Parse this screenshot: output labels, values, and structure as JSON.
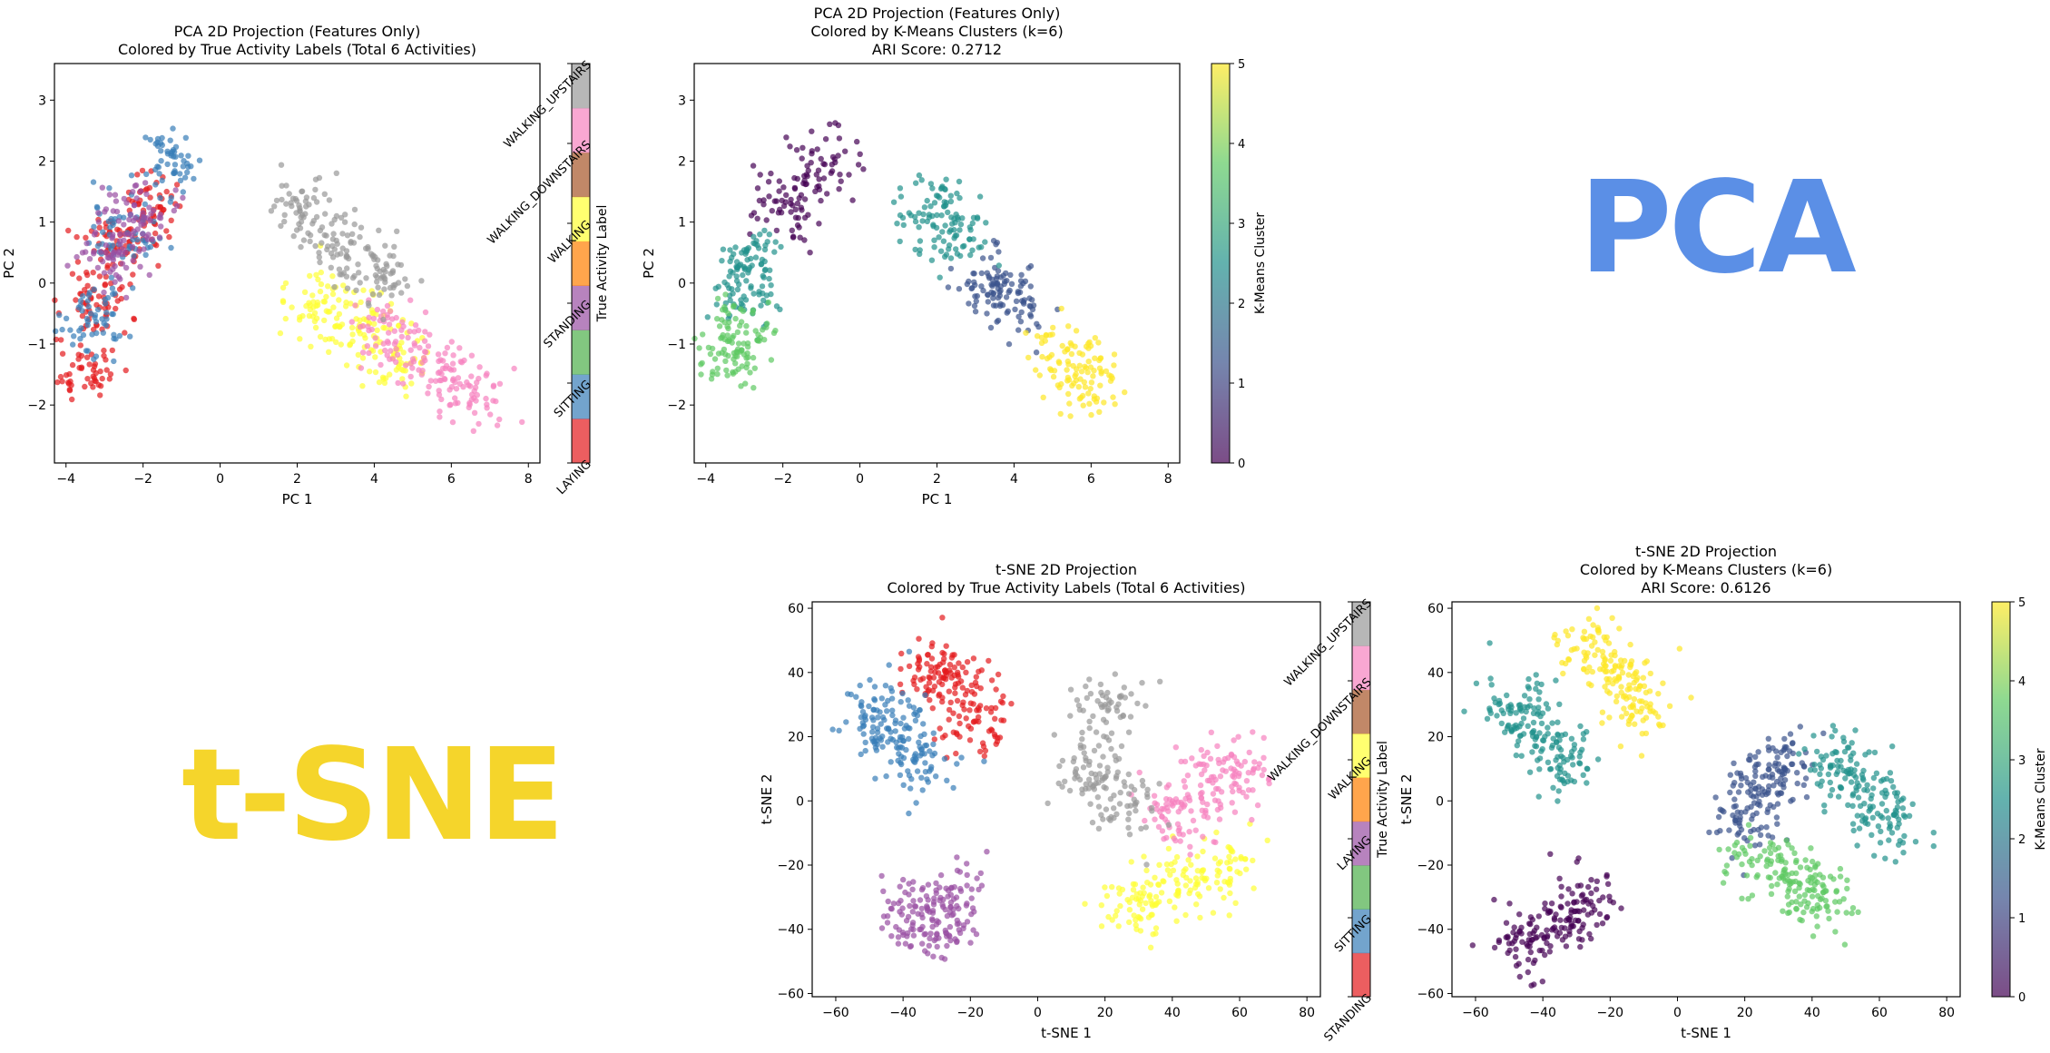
{
  "figure": {
    "big_labels": {
      "pca": "PCA",
      "tsne": "t-SNE"
    },
    "big_label_colors": {
      "pca": "#5b8fe6",
      "tsne": "#f5d52b"
    }
  },
  "activity_palette": {
    "LAYING": "#e41a1c",
    "SITTING": "#377eb8",
    "STANDING": "#984ea3",
    "WALKING": "#ffff33",
    "WALKING_DOWNSTAIRS": "#f781bf",
    "WALKING_UPSTAIRS": "#999999"
  },
  "tab10_colorbar_segments": [
    "#e41a1c",
    "#377eb8",
    "#4daf4a",
    "#984ea3",
    "#ff7f00",
    "#ffff33",
    "#a65628",
    "#f781bf",
    "#999999"
  ],
  "viridis_stops": [
    "#440154",
    "#3b528b",
    "#21918c",
    "#5ec962",
    "#fde725"
  ],
  "chart_data": [
    {
      "id": "pca-true",
      "type": "scatter",
      "title": "PCA 2D Projection (Features Only)",
      "subtitle": "Colored by True Activity Labels (Total 6 Activities)",
      "xlabel": "PC 1",
      "ylabel": "PC 2",
      "xlim": [
        -4.3,
        8.3
      ],
      "ylim": [
        -2.95,
        3.6
      ],
      "xticks": [
        -4,
        -2,
        0,
        2,
        4,
        6,
        8
      ],
      "yticks": [
        -2,
        -1,
        0,
        1,
        2,
        3
      ],
      "tick_labels_x": [
        "−4",
        "−2",
        "0",
        "2",
        "4",
        "6",
        "8"
      ],
      "tick_labels_y": [
        "−2",
        "−1",
        "0",
        "1",
        "2",
        "3"
      ],
      "colorbar": {
        "label": "True Activity Label",
        "kind": "categorical",
        "labels": [
          "LAYING",
          "SITTING",
          "STANDING",
          "WALKING",
          "WALKING_DOWNSTAIRS",
          "WALKING_UPSTAIRS"
        ]
      },
      "series": [
        {
          "name": "LAYING",
          "centroids": [
            [
              -3.5,
              -1.4
            ],
            [
              -3.2,
              -0.3
            ],
            [
              -2.7,
              0.6
            ],
            [
              -1.8,
              1.3
            ]
          ]
        },
        {
          "name": "SITTING",
          "centroids": [
            [
              -3.3,
              -0.6
            ],
            [
              -2.5,
              0.8
            ],
            [
              -1.3,
              2.0
            ]
          ]
        },
        {
          "name": "STANDING",
          "centroids": [
            [
              -2.8,
              0.5
            ],
            [
              -2.2,
              1.2
            ]
          ]
        },
        {
          "name": "WALKING",
          "centroids": [
            [
              2.5,
              -0.3
            ],
            [
              3.6,
              -0.7
            ],
            [
              4.5,
              -1.2
            ]
          ]
        },
        {
          "name": "WALKING_DOWNSTAIRS",
          "centroids": [
            [
              4.3,
              -0.8
            ],
            [
              5.4,
              -1.3
            ],
            [
              6.5,
              -1.8
            ]
          ]
        },
        {
          "name": "WALKING_UPSTAIRS",
          "centroids": [
            [
              2.2,
              1.2
            ],
            [
              3.2,
              0.6
            ],
            [
              4.2,
              0.1
            ]
          ]
        }
      ]
    },
    {
      "id": "pca-kmeans",
      "type": "scatter",
      "title": "PCA 2D Projection (Features Only)",
      "subtitle": "Colored by K-Means Clusters (k=6)",
      "subtitle2": "ARI Score: 0.2712",
      "xlabel": "PC 1",
      "ylabel": "PC 2",
      "xlim": [
        -4.3,
        8.3
      ],
      "ylim": [
        -2.95,
        3.6
      ],
      "xticks": [
        -4,
        -2,
        0,
        2,
        4,
        6,
        8
      ],
      "yticks": [
        -2,
        -1,
        0,
        1,
        2,
        3
      ],
      "tick_labels_x": [
        "−4",
        "−2",
        "0",
        "2",
        "4",
        "6",
        "8"
      ],
      "tick_labels_y": [
        "−2",
        "−1",
        "0",
        "1",
        "2",
        "3"
      ],
      "colorbar": {
        "label": "K-Means Cluster",
        "kind": "continuous",
        "range": [
          0,
          5
        ],
        "ticks": [
          0,
          1,
          2,
          3,
          4,
          5
        ]
      },
      "series": [
        {
          "name": "0",
          "centroids": [
            [
              -2.0,
              1.3
            ],
            [
              -1.0,
              1.9
            ]
          ]
        },
        {
          "name": "1",
          "centroids": [
            [
              3.5,
              0.0
            ],
            [
              4.0,
              -0.3
            ]
          ]
        },
        {
          "name": "2",
          "centroids": [
            [
              -2.9,
              0.3
            ],
            [
              -3.1,
              -0.2
            ]
          ]
        },
        {
          "name": "3",
          "centroids": [
            [
              2.0,
              1.2
            ],
            [
              2.5,
              0.8
            ]
          ]
        },
        {
          "name": "4",
          "centroids": [
            [
              -3.4,
              -1.2
            ],
            [
              -3.2,
              -0.8
            ]
          ]
        },
        {
          "name": "5",
          "centroids": [
            [
              5.3,
              -1.2
            ],
            [
              6.0,
              -1.6
            ]
          ]
        }
      ]
    },
    {
      "id": "tsne-true",
      "type": "scatter",
      "title": "t-SNE 2D Projection",
      "subtitle": "Colored by True Activity Labels (Total 6 Activities)",
      "xlabel": "t-SNE 1",
      "ylabel": "t-SNE 2",
      "xlim": [
        -67,
        84
      ],
      "ylim": [
        -61,
        62
      ],
      "xticks": [
        -60,
        -40,
        -20,
        0,
        20,
        40,
        60,
        80
      ],
      "yticks": [
        -60,
        -40,
        -20,
        0,
        20,
        40,
        60
      ],
      "tick_labels_x": [
        "−60",
        "−40",
        "−20",
        "0",
        "20",
        "40",
        "60",
        "80"
      ],
      "tick_labels_y": [
        "−60",
        "−40",
        "−20",
        "0",
        "20",
        "40",
        "60"
      ],
      "colorbar": {
        "label": "True Activity Label",
        "kind": "categorical",
        "labels": [
          "STANDING",
          "SITTING",
          "LAYING",
          "WALKING",
          "WALKING_DOWNSTAIRS",
          "WALKING_UPSTAIRS"
        ]
      },
      "series": [
        {
          "name": "LAYING",
          "centroids": [
            [
              -25,
              35
            ],
            [
              -18,
              25
            ],
            [
              -30,
              42
            ]
          ]
        },
        {
          "name": "SITTING",
          "centroids": [
            [
              -42,
              22
            ],
            [
              -35,
              10
            ],
            [
              -48,
              28
            ]
          ]
        },
        {
          "name": "STANDING",
          "centroids": [
            [
              -30,
              -40
            ],
            [
              -25,
              -30
            ],
            [
              -38,
              -35
            ]
          ]
        },
        {
          "name": "WALKING",
          "centroids": [
            [
              40,
              -25
            ],
            [
              55,
              -20
            ],
            [
              30,
              -32
            ]
          ]
        },
        {
          "name": "WALKING_DOWNSTAIRS",
          "centroids": [
            [
              50,
              5
            ],
            [
              60,
              10
            ],
            [
              40,
              -5
            ]
          ]
        },
        {
          "name": "WALKING_UPSTAIRS",
          "centroids": [
            [
              15,
              10
            ],
            [
              25,
              0
            ],
            [
              20,
              30
            ]
          ]
        }
      ]
    },
    {
      "id": "tsne-kmeans",
      "type": "scatter",
      "title": "t-SNE 2D Projection",
      "subtitle": "Colored by K-Means Clusters (k=6)",
      "subtitle2": "ARI Score: 0.6126",
      "xlabel": "t-SNE 1",
      "ylabel": "t-SNE 2",
      "xlim": [
        -67,
        84
      ],
      "ylim": [
        -61,
        62
      ],
      "xticks": [
        -60,
        -40,
        -20,
        0,
        20,
        40,
        60,
        80
      ],
      "yticks": [
        -60,
        -40,
        -20,
        0,
        20,
        40,
        60
      ],
      "tick_labels_x": [
        "−60",
        "−40",
        "−20",
        "0",
        "20",
        "40",
        "60",
        "80"
      ],
      "tick_labels_y": [
        "−60",
        "−40",
        "−20",
        "0",
        "20",
        "40",
        "60"
      ],
      "colorbar": {
        "label": "K-Means Cluster",
        "kind": "continuous",
        "range": [
          0,
          5
        ],
        "ticks": [
          0,
          1,
          2,
          3,
          4,
          5
        ]
      },
      "series": [
        {
          "name": "0",
          "centroids": [
            [
              -35,
              -40
            ],
            [
              -28,
              -30
            ],
            [
              -45,
              -45
            ]
          ]
        },
        {
          "name": "1",
          "centroids": [
            [
              25,
              5
            ],
            [
              20,
              -5
            ],
            [
              30,
              12
            ]
          ]
        },
        {
          "name": "2",
          "centroids": [
            [
              -42,
              22
            ],
            [
              -35,
              12
            ],
            [
              -48,
              28
            ]
          ]
        },
        {
          "name": "3",
          "centroids": [
            [
              55,
              5
            ],
            [
              62,
              -5
            ],
            [
              48,
              12
            ]
          ]
        },
        {
          "name": "4",
          "centroids": [
            [
              35,
              -25
            ],
            [
              25,
              -20
            ],
            [
              45,
              -30
            ]
          ]
        },
        {
          "name": "5",
          "centroids": [
            [
              -18,
              38
            ],
            [
              -25,
              45
            ],
            [
              -12,
              30
            ]
          ]
        }
      ]
    }
  ]
}
